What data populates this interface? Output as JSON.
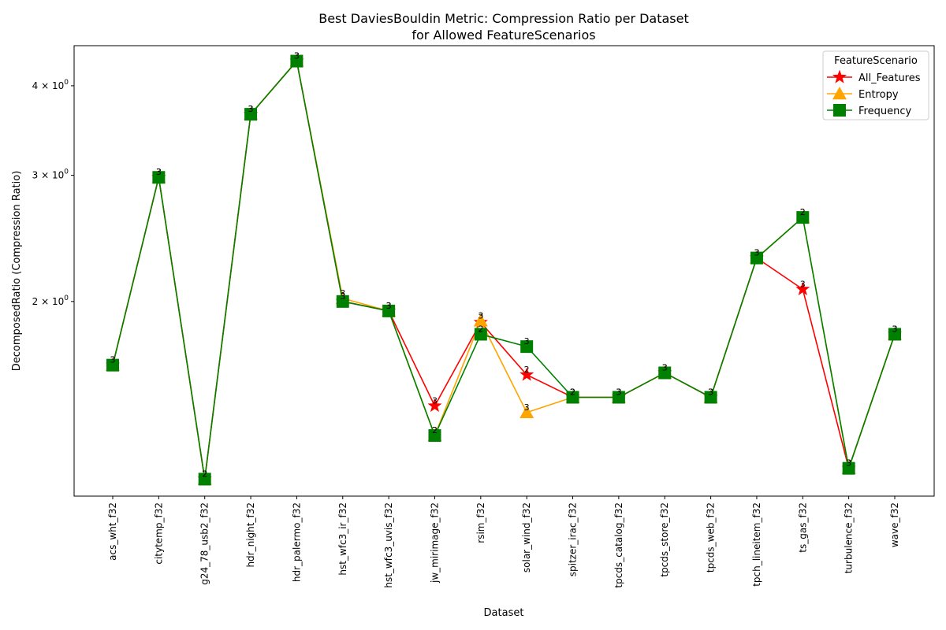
{
  "chart_data": {
    "type": "line",
    "title": "Best DaviesBouldin Metric: Compression Ratio per Dataset",
    "subtitle": "for Allowed FeatureScenarios",
    "xlabel": "Dataset",
    "ylabel": "DecomposedRatio (Compression Ratio)",
    "yscale": "log",
    "ylim": [
      1.07,
      4.55
    ],
    "y_ticks": [
      {
        "value": 2,
        "base": "2",
        "exp": "0"
      },
      {
        "value": 3,
        "base": "3",
        "exp": "0"
      },
      {
        "value": 4,
        "base": "4",
        "exp": "0"
      }
    ],
    "grid": false,
    "legend_title": "FeatureScenario",
    "legend_position": "top-right",
    "categories": [
      "acs_wht_f32",
      "citytemp_f32",
      "g24_78_usb2_f32",
      "hdr_night_f32",
      "hdr_palermo_f32",
      "hst_wfc3_ir_f32",
      "hst_wfc3_uvis_f32",
      "jw_mirimage_f32",
      "rsim_f32",
      "solar_wind_f32",
      "spitzer_irac_f32",
      "tpcds_catalog_f32",
      "tpcds_store_f32",
      "tpcds_web_f32",
      "tpch_lineitem_f32",
      "ts_gas_f32",
      "turbulence_f32",
      "wave_f32"
    ],
    "series": [
      {
        "name": "All_Features",
        "color": "#ff0000",
        "marker": "star",
        "values": [
          1.63,
          2.98,
          1.13,
          3.65,
          4.33,
          2.0,
          1.94,
          1.43,
          1.87,
          1.58,
          1.47,
          1.47,
          1.59,
          1.47,
          2.3,
          2.08,
          1.17,
          1.8
        ],
        "labels": [
          "3",
          "3",
          "3",
          "3",
          "3",
          "3",
          "3",
          "3",
          "3",
          "2",
          "2",
          "3",
          "3",
          "3",
          "3",
          "3",
          "3",
          "3"
        ]
      },
      {
        "name": "Entropy",
        "color": "#ffa500",
        "marker": "triangle",
        "values": [
          1.63,
          2.98,
          1.13,
          3.65,
          4.33,
          2.02,
          1.94,
          1.3,
          1.88,
          1.4,
          1.47,
          1.47,
          1.59,
          1.47,
          2.3,
          2.62,
          1.17,
          1.8
        ],
        "labels": [
          "3",
          "3",
          "3",
          "3",
          "3",
          "3",
          "3",
          "2",
          "3",
          "3",
          "2",
          "3",
          "3",
          "3",
          "3",
          "2",
          "3",
          "3"
        ]
      },
      {
        "name": "Frequency",
        "color": "#008000",
        "marker": "square",
        "values": [
          1.63,
          2.98,
          1.13,
          3.65,
          4.33,
          2.0,
          1.94,
          1.3,
          1.8,
          1.73,
          1.47,
          1.47,
          1.59,
          1.47,
          2.3,
          2.62,
          1.17,
          1.8
        ],
        "labels": [
          "3",
          "3",
          "2",
          "3",
          "3",
          "3",
          "3",
          "2",
          "2",
          "3",
          "2",
          "3",
          "3",
          "3",
          "3",
          "2",
          "3",
          "3"
        ]
      }
    ]
  }
}
